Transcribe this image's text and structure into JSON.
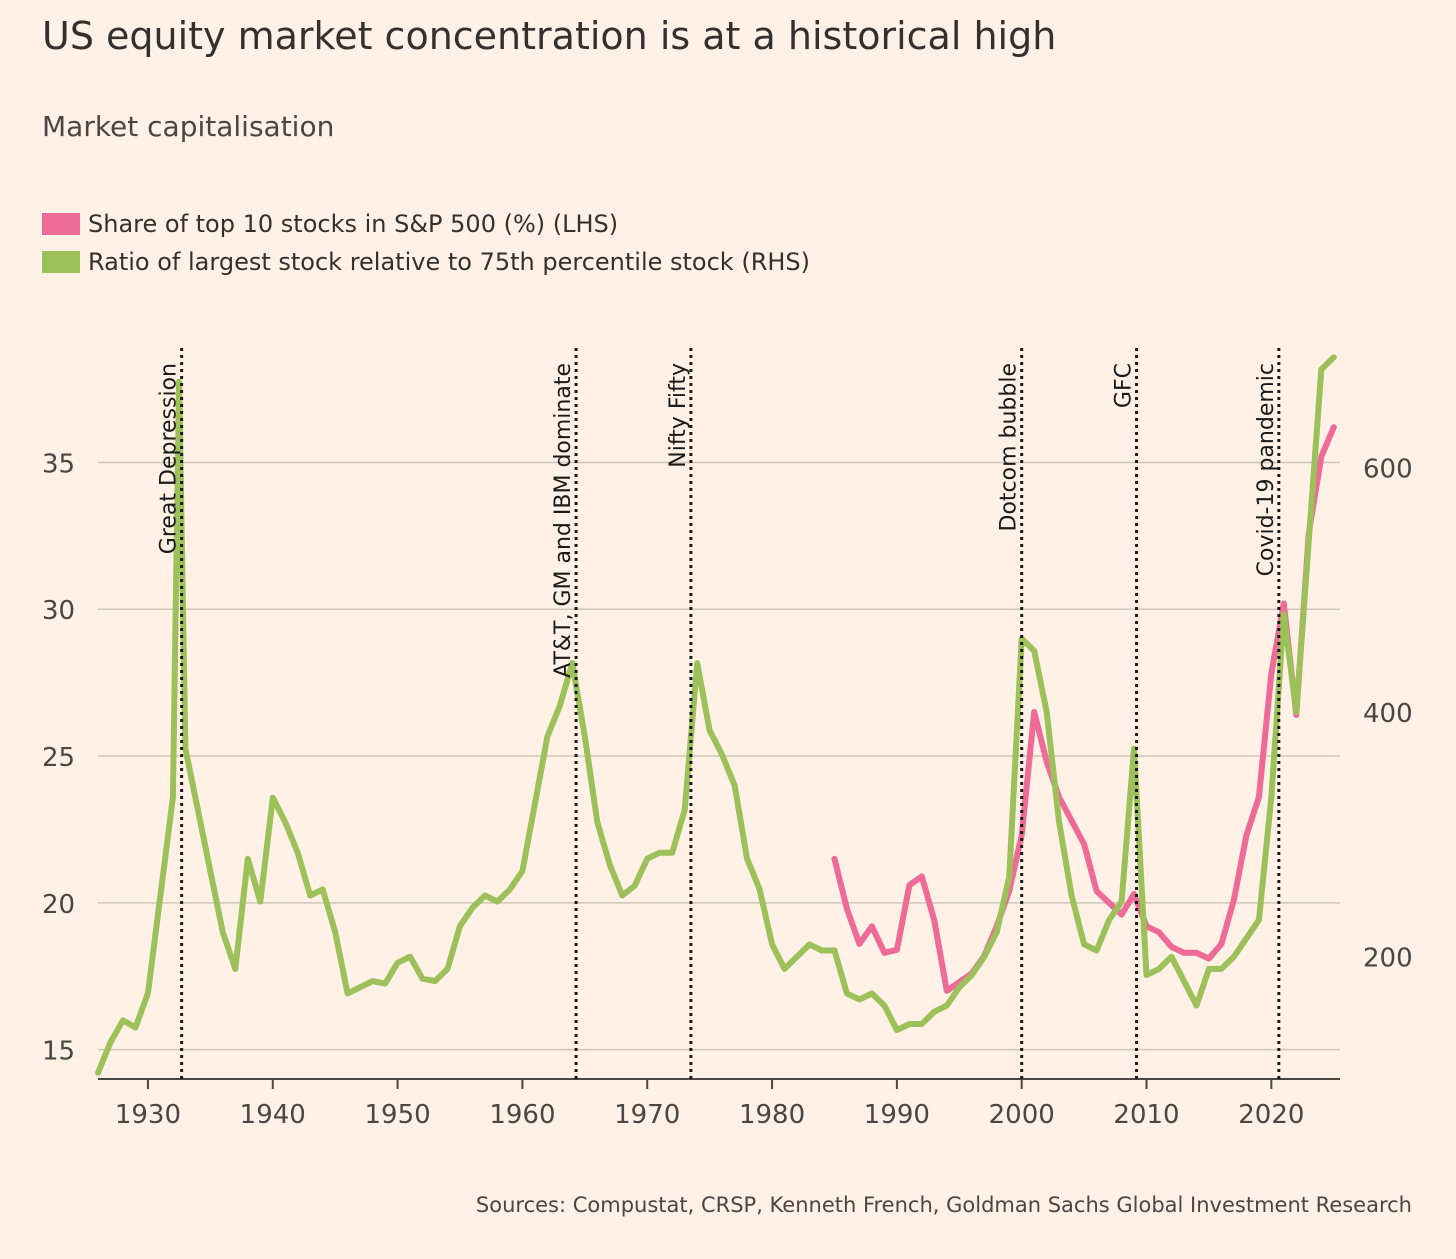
{
  "title": "US equity market concentration is at a historical high",
  "subtitle": "Market capitalisation",
  "source": "Sources: Compustat, CRSP, Kenneth French, Goldman Sachs Global Investment Research",
  "colors": {
    "background": "#FFF1E5",
    "pink": "#EE6A97",
    "green": "#9CC05A",
    "grid": "#CEC6B9",
    "text": "#33302E"
  },
  "chart_data": {
    "type": "line",
    "title": "US equity market concentration is at a historical high",
    "subtitle": "Market capitalisation",
    "xlim": [
      1926,
      2025.5
    ],
    "x_ticks": [
      1930,
      1940,
      1950,
      1960,
      1970,
      1980,
      1990,
      2000,
      2010,
      2020
    ],
    "y_left": {
      "lim": [
        14,
        39
      ],
      "ticks": [
        15,
        20,
        25,
        30,
        35
      ]
    },
    "y_right": {
      "lim": [
        100,
        700
      ],
      "ticks": [
        200,
        400,
        600
      ]
    },
    "grid": true,
    "legend_position": "top-left",
    "annotations": [
      {
        "x": 1932.7,
        "label": "Great Depression"
      },
      {
        "x": 1964.3,
        "label": "AT&T, GM and IBM dominate"
      },
      {
        "x": 1973.5,
        "label": "Nifty Fifty"
      },
      {
        "x": 2000.0,
        "label": "Dotcom bubble"
      },
      {
        "x": 2009.2,
        "label": "GFC"
      },
      {
        "x": 2020.6,
        "label": "Covid-19 pandemic"
      }
    ],
    "series": [
      {
        "name": "Share of top 10 stocks in S&P 500 (%) (LHS)",
        "axis": "left",
        "color": "#EE6A97",
        "x": [
          1985,
          1986,
          1987,
          1988,
          1989,
          1990,
          1991,
          1992,
          1993,
          1994,
          1995,
          1996,
          1997,
          1998,
          1999,
          2000,
          2001,
          2002,
          2003,
          2004,
          2005,
          2006,
          2007,
          2008,
          2009,
          2010,
          2011,
          2012,
          2013,
          2014,
          2015,
          2016,
          2017,
          2018,
          2019,
          2020,
          2021,
          2022,
          2023,
          2024,
          2025
        ],
        "values": [
          21.5,
          19.8,
          18.6,
          19.2,
          18.3,
          18.4,
          20.6,
          20.9,
          19.4,
          17.0,
          17.3,
          17.6,
          18.2,
          19.2,
          20.4,
          22.3,
          26.5,
          24.8,
          23.6,
          22.8,
          22.0,
          20.4,
          20.0,
          19.6,
          20.3,
          19.2,
          19.0,
          18.5,
          18.3,
          18.3,
          18.1,
          18.6,
          20.1,
          22.3,
          23.6,
          27.8,
          30.2,
          26.4,
          32.6,
          35.2,
          36.2
        ]
      },
      {
        "name": "Ratio of largest stock relative to 75th percentile stock (RHS)",
        "axis": "right",
        "color": "#9CC05A",
        "x": [
          1926,
          1927,
          1928,
          1929,
          1930,
          1931,
          1932,
          1932.5,
          1933,
          1934,
          1935,
          1936,
          1937,
          1938,
          1939,
          1940,
          1941,
          1942,
          1943,
          1944,
          1945,
          1946,
          1947,
          1948,
          1949,
          1950,
          1951,
          1952,
          1953,
          1954,
          1955,
          1956,
          1957,
          1958,
          1959,
          1960,
          1961,
          1962,
          1963,
          1964,
          1965,
          1966,
          1967,
          1968,
          1969,
          1970,
          1971,
          1972,
          1973,
          1974,
          1975,
          1976,
          1977,
          1978,
          1979,
          1980,
          1981,
          1982,
          1983,
          1984,
          1985,
          1986,
          1987,
          1988,
          1989,
          1990,
          1991,
          1992,
          1993,
          1994,
          1995,
          1996,
          1997,
          1998,
          1999,
          2000,
          2001,
          2002,
          2003,
          2004,
          2005,
          2006,
          2007,
          2008,
          2009,
          2010,
          2011,
          2012,
          2013,
          2014,
          2015,
          2016,
          2017,
          2018,
          2019,
          2020,
          2021,
          2022,
          2023,
          2024,
          2025
        ],
        "values": [
          105,
          130,
          148,
          142,
          170,
          250,
          330,
          670,
          370,
          320,
          270,
          220,
          190,
          280,
          245,
          330,
          310,
          285,
          250,
          255,
          220,
          170,
          175,
          180,
          178,
          195,
          200,
          182,
          180,
          190,
          225,
          240,
          250,
          245,
          255,
          270,
          325,
          380,
          405,
          440,
          380,
          310,
          275,
          250,
          258,
          280,
          285,
          285,
          320,
          440,
          385,
          365,
          340,
          280,
          255,
          210,
          190,
          200,
          210,
          205,
          205,
          170,
          165,
          170,
          160,
          140,
          145,
          145,
          155,
          160,
          175,
          185,
          200,
          220,
          265,
          460,
          450,
          400,
          310,
          250,
          210,
          205,
          230,
          245,
          370,
          185,
          190,
          200,
          180,
          160,
          190,
          190,
          200,
          215,
          230,
          330,
          480,
          400,
          540,
          680,
          690
        ]
      }
    ]
  }
}
